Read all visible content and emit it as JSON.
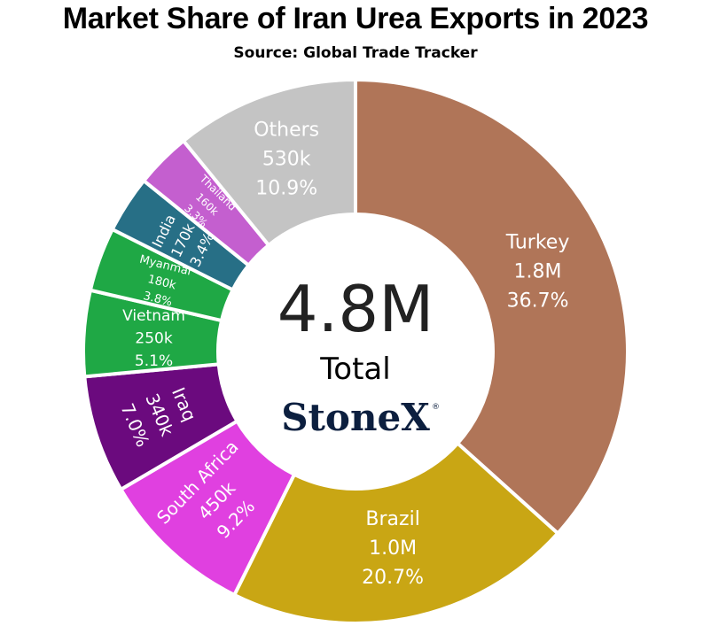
{
  "chart_data": {
    "type": "pie",
    "title": "Market Share of Iran Urea Exports in 2023",
    "subtitle": "Source: Global Trade Tracker",
    "center_value": "4.8M",
    "center_label": "Total",
    "logo": "StoneX",
    "logo_mark": "®",
    "slices": [
      {
        "name": "Turkey",
        "value_label": "1.8M",
        "percent_label": "36.7%",
        "percent": 36.7,
        "color": "#b07558"
      },
      {
        "name": "Brazil",
        "value_label": "1.0M",
        "percent_label": "20.7%",
        "percent": 20.7,
        "color": "#c9a614"
      },
      {
        "name": "South Africa",
        "value_label": "450k",
        "percent_label": "9.2%",
        "percent": 9.2,
        "color": "#e040e0"
      },
      {
        "name": "Iraq",
        "value_label": "340k",
        "percent_label": "7.0%",
        "percent": 7.0,
        "color": "#6b0a7e"
      },
      {
        "name": "Vietnam",
        "value_label": "250k",
        "percent_label": "5.1%",
        "percent": 5.1,
        "color": "#1fa845"
      },
      {
        "name": "Myanmar",
        "value_label": "180k",
        "percent_label": "3.8%",
        "percent": 3.8,
        "color": "#1fa845"
      },
      {
        "name": "India",
        "value_label": "170k",
        "percent_label": "3.4%",
        "percent": 3.4,
        "color": "#276f86"
      },
      {
        "name": "Thailand",
        "value_label": "160k",
        "percent_label": "3.3%",
        "percent": 3.3,
        "color": "#c45fcf"
      },
      {
        "name": "Others",
        "value_label": "530k",
        "percent_label": "10.9%",
        "percent": 10.9,
        "color": "#c4c4c4"
      }
    ]
  }
}
